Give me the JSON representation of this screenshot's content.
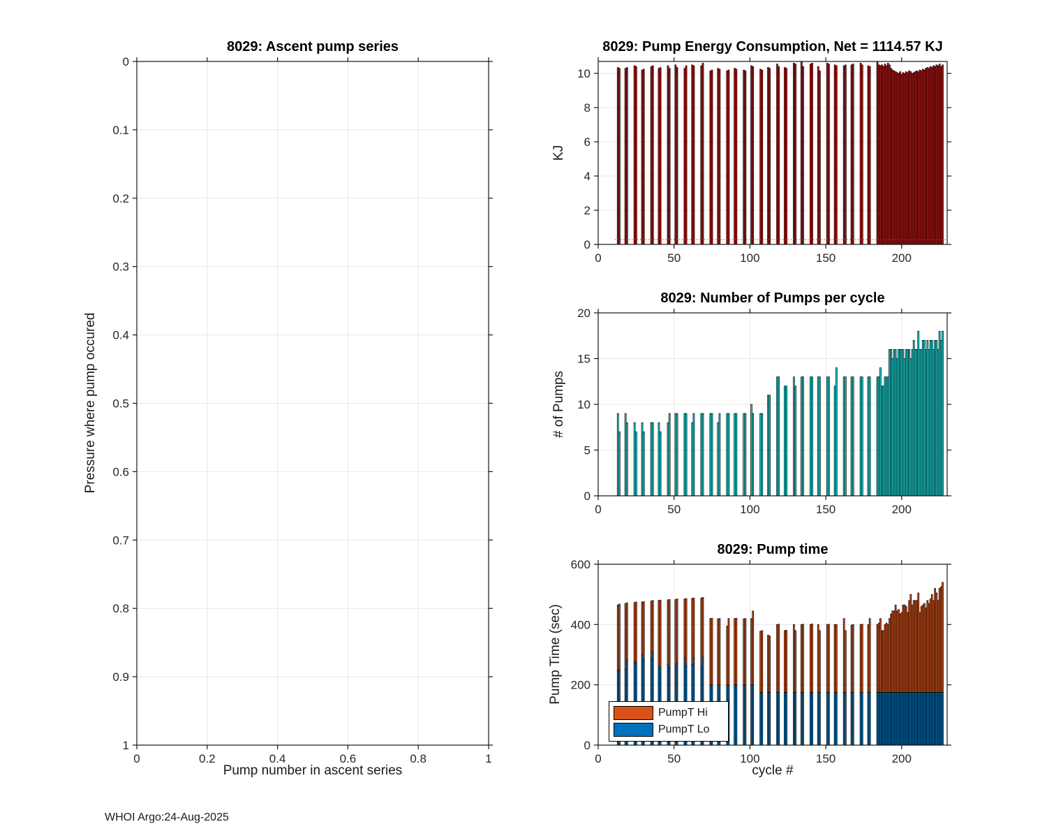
{
  "page": {
    "footer": "WHOI Argo:24-Aug-2025"
  },
  "chart_data": [
    {
      "id": "ascent-pump-series",
      "type": "scatter",
      "title": "8029: Ascent pump series",
      "xlabel": "Pump number in ascent series",
      "ylabel": "Pressure where pump occured",
      "xlim": [
        0,
        1
      ],
      "ylim": [
        0,
        1
      ],
      "y_reversed": true,
      "grid": true,
      "xticks": [
        "0",
        "0.2",
        "0.4",
        "0.6",
        "0.8",
        "1"
      ],
      "yticks": [
        "0",
        "0.1",
        "0.2",
        "0.3",
        "0.4",
        "0.5",
        "0.6",
        "0.7",
        "0.8",
        "0.9",
        "1"
      ],
      "points": []
    },
    {
      "id": "pump-energy",
      "type": "bar",
      "title": "8029: Pump Energy Consumption,  Net = 1114.57 KJ",
      "net_kj": 1114.57,
      "xlabel": "",
      "ylabel": "KJ",
      "xlim": [
        0,
        230
      ],
      "ylim": [
        0,
        10.7
      ],
      "grid": true,
      "xticks": [
        "0",
        "50",
        "100",
        "150",
        "200"
      ],
      "yticks": [
        "0",
        "2",
        "4",
        "6",
        "8",
        "10"
      ],
      "bar_color": "#c01515",
      "bar_edge": "#000000",
      "ref_line": {
        "y": 0.28,
        "color": "#ff2020",
        "style": "dotted",
        "x_start": 11,
        "x_end": 229
      },
      "x": [
        13,
        14,
        18,
        19,
        24,
        25,
        29,
        30,
        35,
        36,
        40,
        41,
        46,
        47,
        51,
        52,
        57,
        58,
        62,
        63,
        68,
        69,
        74,
        75,
        79,
        80,
        85,
        86,
        90,
        91,
        96,
        97,
        101,
        102,
        107,
        108,
        112,
        113,
        118,
        119,
        123,
        124,
        129,
        130,
        134,
        135,
        140,
        141,
        145,
        146,
        151,
        152,
        156,
        157,
        162,
        163,
        167,
        168,
        173,
        174,
        178,
        179,
        184,
        185,
        186,
        187,
        188,
        189,
        190,
        191,
        192,
        193,
        194,
        195,
        196,
        197,
        198,
        199,
        200,
        201,
        202,
        203,
        204,
        205,
        206,
        207,
        208,
        209,
        210,
        211,
        212,
        213,
        214,
        215,
        216,
        217,
        218,
        219,
        220,
        221,
        222,
        223,
        224,
        225,
        226,
        227
      ],
      "values": [
        10.35,
        10.3,
        10.3,
        10.35,
        10.45,
        10.4,
        10.2,
        10.25,
        10.4,
        10.45,
        10.3,
        10.35,
        10.45,
        10.3,
        10.5,
        10.35,
        10.3,
        10.45,
        10.5,
        10.45,
        10.45,
        10.6,
        10.15,
        10.2,
        10.3,
        10.25,
        10.15,
        10.2,
        10.3,
        10.25,
        10.2,
        10.15,
        10.45,
        10.4,
        10.25,
        10.2,
        10.35,
        10.3,
        10.55,
        10.4,
        10.35,
        10.3,
        10.6,
        10.55,
        10.75,
        10.4,
        10.55,
        10.6,
        10.4,
        10.15,
        10.6,
        10.55,
        10.5,
        10.45,
        10.45,
        10.5,
        10.5,
        10.55,
        10.6,
        10.5,
        10.45,
        10.4,
        10.8,
        10.5,
        10.45,
        10.5,
        10.4,
        10.55,
        10.45,
        10.6,
        10.5,
        10.3,
        10.2,
        10.15,
        10.1,
        10.05,
        10.0,
        10.1,
        9.95,
        10.05,
        10.0,
        10.1,
        10.05,
        10.15,
        10.1,
        10.0,
        10.05,
        10.1,
        10.15,
        10.1,
        10.2,
        10.15,
        10.25,
        10.2,
        10.3,
        10.35,
        10.3,
        10.4,
        10.35,
        10.45,
        10.4,
        10.5,
        10.45,
        10.55,
        10.4,
        10.5
      ]
    },
    {
      "id": "pumps-per-cycle",
      "type": "bar",
      "title": "8029: Number of Pumps per cycle",
      "xlabel": "",
      "ylabel": "# of Pumps",
      "xlim": [
        0,
        230
      ],
      "ylim": [
        0,
        20
      ],
      "grid": true,
      "xticks": [
        "0",
        "50",
        "100",
        "150",
        "200"
      ],
      "yticks": [
        "0",
        "5",
        "10",
        "15",
        "20"
      ],
      "bar_color": "#1ddcdc",
      "bar_edge": "#000000",
      "x": [
        13,
        14,
        18,
        19,
        24,
        25,
        29,
        30,
        35,
        36,
        40,
        41,
        46,
        47,
        51,
        52,
        57,
        58,
        62,
        63,
        68,
        69,
        74,
        75,
        79,
        80,
        85,
        86,
        90,
        91,
        96,
        97,
        101,
        102,
        107,
        108,
        112,
        113,
        118,
        119,
        123,
        124,
        129,
        130,
        134,
        135,
        140,
        141,
        145,
        146,
        151,
        152,
        156,
        157,
        162,
        163,
        167,
        168,
        173,
        174,
        178,
        179,
        184,
        185,
        186,
        187,
        188,
        189,
        190,
        191,
        192,
        193,
        194,
        195,
        196,
        197,
        198,
        199,
        200,
        201,
        202,
        203,
        204,
        205,
        206,
        207,
        208,
        209,
        210,
        211,
        212,
        213,
        214,
        215,
        216,
        217,
        218,
        219,
        220,
        221,
        222,
        223,
        224,
        225,
        226,
        227
      ],
      "values": [
        9,
        7,
        9,
        8,
        8,
        7,
        8,
        7,
        8,
        8,
        8,
        7,
        8,
        9,
        9,
        9,
        9,
        9,
        8,
        9,
        9,
        9,
        9,
        9,
        8,
        9,
        9,
        9,
        9,
        9,
        9,
        9,
        10,
        9,
        9,
        9,
        11,
        11,
        13,
        13,
        12,
        12,
        13,
        12,
        13,
        13,
        13,
        13,
        13,
        13,
        13,
        13,
        12,
        14,
        13,
        13,
        13,
        13,
        13,
        13,
        13,
        13,
        13,
        13,
        14,
        12,
        12,
        13,
        13,
        13,
        16,
        16,
        15,
        16,
        16,
        15,
        16,
        16,
        16,
        16,
        15,
        16,
        16,
        16,
        15,
        16,
        17,
        16,
        16,
        18,
        16,
        16,
        17,
        17,
        16,
        17,
        16,
        17,
        17,
        16,
        17,
        17,
        16,
        18,
        17,
        18
      ]
    },
    {
      "id": "pump-time",
      "type": "stacked_bar",
      "title": "8029: Pump time",
      "xlabel": "cycle #",
      "ylabel": "Pump Time (sec)",
      "xlim": [
        0,
        230
      ],
      "ylim": [
        0,
        600
      ],
      "grid": true,
      "xticks": [
        "0",
        "50",
        "100",
        "150",
        "200"
      ],
      "yticks": [
        "0",
        "200",
        "400",
        "600"
      ],
      "bar_edge": "#000000",
      "legend": {
        "position": "southwest",
        "entries": [
          {
            "label": "PumpT Hi",
            "color": "#d95319"
          },
          {
            "label": "PumpT Lo",
            "color": "#0072bd"
          }
        ]
      },
      "x": [
        13,
        14,
        18,
        19,
        24,
        25,
        29,
        30,
        35,
        36,
        40,
        41,
        46,
        47,
        51,
        52,
        57,
        58,
        62,
        63,
        68,
        69,
        74,
        75,
        79,
        80,
        85,
        86,
        90,
        91,
        96,
        97,
        101,
        102,
        107,
        108,
        112,
        113,
        118,
        119,
        123,
        124,
        129,
        130,
        134,
        135,
        140,
        141,
        145,
        146,
        151,
        152,
        156,
        157,
        162,
        163,
        167,
        168,
        173,
        174,
        178,
        179,
        184,
        185,
        186,
        187,
        188,
        189,
        190,
        191,
        192,
        193,
        194,
        195,
        196,
        197,
        198,
        199,
        200,
        201,
        202,
        203,
        204,
        205,
        206,
        207,
        208,
        209,
        210,
        211,
        212,
        213,
        214,
        215,
        216,
        217,
        218,
        219,
        220,
        221,
        222,
        223,
        224,
        225,
        226,
        227
      ],
      "lo_sec": [
        248,
        250,
        252,
        282,
        278,
        272,
        300,
        282,
        285,
        308,
        262,
        255,
        268,
        258,
        262,
        270,
        288,
        262,
        268,
        288,
        258,
        292,
        200,
        200,
        200,
        200,
        200,
        198,
        200,
        200,
        200,
        200,
        200,
        200,
        175,
        175,
        175,
        175,
        175,
        175,
        175,
        175,
        175,
        175,
        175,
        175,
        175,
        175,
        175,
        175,
        175,
        175,
        175,
        175,
        175,
        175,
        175,
        175,
        175,
        175,
        175,
        175,
        175,
        175,
        175,
        175,
        175,
        175,
        175,
        175,
        175,
        175,
        175,
        175,
        175,
        175,
        175,
        175,
        175,
        175,
        175,
        175,
        175,
        175,
        175,
        175,
        175,
        175,
        175,
        175,
        175,
        175,
        175,
        175,
        175,
        175,
        175,
        175,
        175,
        175,
        175,
        175,
        175,
        175,
        175,
        175
      ],
      "total_sec": [
        465,
        468,
        470,
        472,
        473,
        475,
        475,
        476,
        478,
        480,
        480,
        481,
        482,
        483,
        483,
        485,
        485,
        486,
        487,
        488,
        488,
        490,
        420,
        421,
        419,
        420,
        395,
        420,
        420,
        421,
        419,
        420,
        420,
        445,
        378,
        380,
        365,
        362,
        400,
        401,
        380,
        381,
        400,
        380,
        400,
        401,
        400,
        402,
        400,
        380,
        400,
        401,
        400,
        400,
        420,
        380,
        398,
        400,
        400,
        401,
        400,
        420,
        400,
        405,
        420,
        380,
        380,
        400,
        405,
        400,
        420,
        435,
        445,
        445,
        465,
        445,
        450,
        435,
        440,
        465,
        465,
        460,
        440,
        480,
        500,
        465,
        480,
        480,
        480,
        505,
        440,
        460,
        465,
        470,
        455,
        480,
        470,
        485,
        500,
        480,
        520,
        505,
        480,
        520,
        525,
        540
      ]
    }
  ]
}
